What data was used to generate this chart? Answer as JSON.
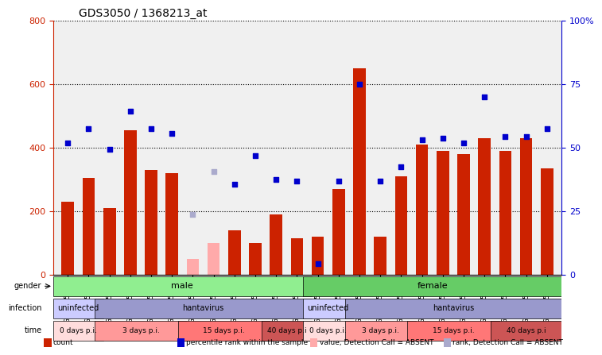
{
  "title": "GDS3050 / 1368213_at",
  "samples": [
    "GSM175452",
    "GSM175453",
    "GSM175454",
    "GSM175455",
    "GSM175456",
    "GSM175457",
    "GSM175458",
    "GSM175459",
    "GSM175460",
    "GSM175461",
    "GSM175462",
    "GSM175463",
    "GSM175440",
    "GSM175441",
    "GSM175442",
    "GSM175443",
    "GSM175444",
    "GSM175445",
    "GSM175446",
    "GSM175447",
    "GSM175448",
    "GSM175449",
    "GSM175450",
    "GSM175451"
  ],
  "counts": [
    230,
    305,
    210,
    455,
    330,
    320,
    50,
    100,
    140,
    100,
    190,
    115,
    120,
    270,
    650,
    120,
    310,
    410,
    390,
    380,
    430,
    390,
    430,
    335
  ],
  "absent_count_indices": [
    6,
    7
  ],
  "ranks": [
    415,
    460,
    395,
    515,
    460,
    445,
    190,
    325,
    285,
    375,
    300,
    295,
    35,
    295,
    600,
    295,
    340,
    425,
    430,
    415,
    560,
    435,
    435,
    460
  ],
  "absent_rank_indices": [
    6,
    7
  ],
  "ylim_left": [
    0,
    800
  ],
  "ylim_right": [
    0,
    100
  ],
  "yticks_left": [
    0,
    200,
    400,
    600,
    800
  ],
  "yticks_right": [
    0,
    25,
    50,
    75,
    100
  ],
  "bar_color": "#cc2200",
  "bar_color_absent": "#ffaaaa",
  "rank_color": "#0000cc",
  "rank_color_absent": "#aaaacc",
  "background_color": "#ffffff",
  "plot_bg_color": "#f0f0f0",
  "gender_groups": [
    {
      "label": "male",
      "start": 0,
      "end": 12,
      "color": "#90ee90"
    },
    {
      "label": "female",
      "start": 12,
      "end": 24,
      "color": "#90ee90"
    }
  ],
  "infection_groups": [
    {
      "label": "uninfected",
      "start": 0,
      "end": 2,
      "color": "#ccccff"
    },
    {
      "label": "hantavirus",
      "start": 2,
      "end": 12,
      "color": "#9999dd"
    },
    {
      "label": "uninfected",
      "start": 12,
      "end": 14,
      "color": "#ccccff"
    },
    {
      "label": "hantavirus",
      "start": 14,
      "end": 24,
      "color": "#9999dd"
    }
  ],
  "time_groups": [
    {
      "label": "0 days p.i.",
      "start": 0,
      "end": 2,
      "color": "#ffcccc"
    },
    {
      "label": "3 days p.i.",
      "start": 2,
      "end": 6,
      "color": "#ff8888"
    },
    {
      "label": "15 days p.i.",
      "start": 6,
      "end": 10,
      "color": "#ff6666"
    },
    {
      "label": "40 days p.i",
      "start": 10,
      "end": 12,
      "color": "#cc4444"
    },
    {
      "label": "0 days p.i.",
      "start": 12,
      "end": 14,
      "color": "#ffcccc"
    },
    {
      "label": "3 days p.i.",
      "start": 14,
      "end": 17,
      "color": "#ff8888"
    },
    {
      "label": "15 days p.i.",
      "start": 17,
      "end": 21,
      "color": "#ff6666"
    },
    {
      "label": "40 days p.i",
      "start": 21,
      "end": 24,
      "color": "#cc4444"
    }
  ],
  "legend_items": [
    {
      "label": "count",
      "color": "#cc2200",
      "marker": "s"
    },
    {
      "label": "percentile rank within the sample",
      "color": "#0000cc",
      "marker": "s"
    },
    {
      "label": "value, Detection Call = ABSENT",
      "color": "#ffaaaa",
      "marker": "s"
    },
    {
      "label": "rank, Detection Call = ABSENT",
      "color": "#aaaacc",
      "marker": "s"
    }
  ]
}
